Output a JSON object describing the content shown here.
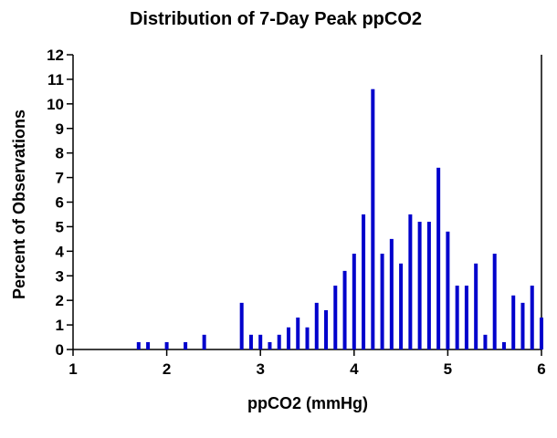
{
  "chart_data": {
    "type": "bar",
    "title": "Distribution of 7-Day Peak ppCO2",
    "xlabel": "ppCO2  (mmHg)",
    "ylabel": "Percent  of  Observations",
    "xlim": [
      1,
      6
    ],
    "ylim": [
      0,
      12
    ],
    "xticks": [
      "1",
      "2",
      "3",
      "4",
      "5",
      "6"
    ],
    "yticks": [
      "0",
      "1",
      "2",
      "3",
      "4",
      "5",
      "6",
      "7",
      "8",
      "9",
      "10",
      "11",
      "12"
    ],
    "bar_color": "#0000cc",
    "x": [
      1.7,
      1.8,
      2.0,
      2.2,
      2.4,
      2.8,
      2.9,
      3.0,
      3.1,
      3.2,
      3.3,
      3.4,
      3.5,
      3.6,
      3.7,
      3.8,
      3.9,
      4.0,
      4.1,
      4.2,
      4.3,
      4.4,
      4.5,
      4.6,
      4.7,
      4.8,
      4.9,
      5.0,
      5.1,
      5.2,
      5.3,
      5.4,
      5.5,
      5.6,
      5.7,
      5.8,
      5.9,
      6.0
    ],
    "values": [
      0.3,
      0.3,
      0.3,
      0.3,
      0.6,
      1.9,
      0.6,
      0.6,
      0.3,
      0.6,
      0.9,
      1.3,
      0.9,
      1.9,
      1.6,
      2.6,
      3.2,
      3.9,
      5.5,
      10.6,
      3.9,
      4.5,
      3.5,
      5.5,
      5.2,
      5.2,
      7.4,
      4.8,
      2.6,
      2.6,
      3.5,
      0.6,
      3.9,
      0.3,
      2.2,
      1.9,
      2.6,
      1.3
    ]
  }
}
